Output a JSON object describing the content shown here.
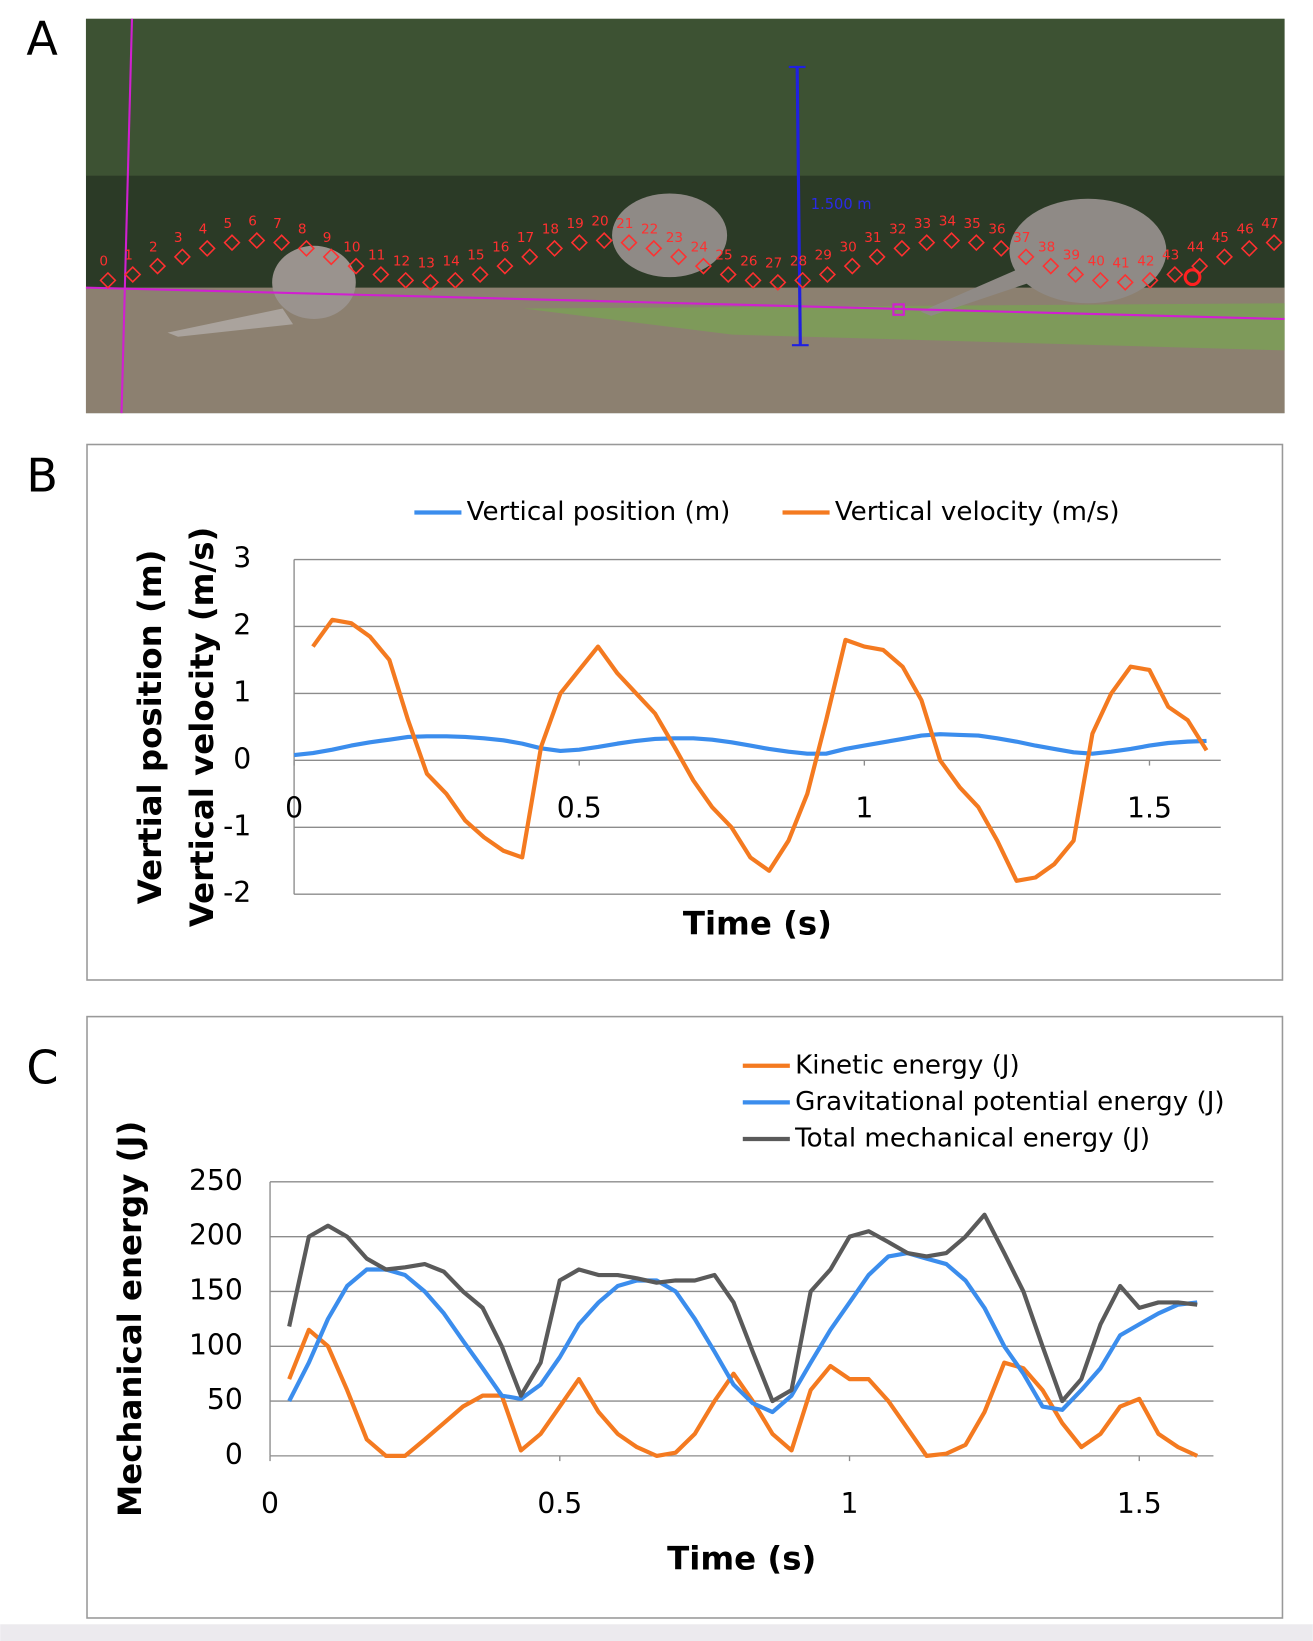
{
  "panel_labels": [
    "A",
    "B",
    "C"
  ],
  "photo": {
    "scale_label": "1.500 m",
    "point_labels": [
      "0",
      "1",
      "2",
      "3",
      "4",
      "5",
      "6",
      "7",
      "8",
      "9",
      "10",
      "11",
      "12",
      "13",
      "14",
      "15",
      "16",
      "17",
      "18",
      "19",
      "20",
      "21",
      "22",
      "23",
      "24",
      "25",
      "26",
      "27",
      "28",
      "29",
      "30",
      "31",
      "32",
      "33",
      "34",
      "35",
      "36",
      "37",
      "38",
      "39",
      "40",
      "41",
      "42",
      "43",
      "44",
      "45",
      "46",
      "47"
    ]
  },
  "chart_data": [
    {
      "type": "line",
      "legend": "top",
      "x_label": "Time (s)",
      "y_label": [
        "Vertial position (m)",
        "Vertical velocity (m/s)"
      ],
      "x": [
        0,
        0.033,
        0.067,
        0.1,
        0.133,
        0.167,
        0.2,
        0.233,
        0.267,
        0.3,
        0.333,
        0.367,
        0.4,
        0.433,
        0.467,
        0.5,
        0.533,
        0.567,
        0.6,
        0.633,
        0.667,
        0.7,
        0.733,
        0.767,
        0.8,
        0.833,
        0.867,
        0.9,
        0.933,
        0.967,
        1,
        1.033,
        1.067,
        1.1,
        1.133,
        1.167,
        1.2,
        1.233,
        1.267,
        1.3,
        1.333,
        1.367,
        1.4,
        1.433,
        1.467,
        1.5,
        1.533,
        1.567,
        1.6
      ],
      "series": [
        {
          "name": "Vertical position (m)",
          "color": "#3b8ded",
          "values": [
            0.08,
            0.11,
            0.16,
            0.22,
            0.27,
            0.31,
            0.35,
            0.36,
            0.36,
            0.35,
            0.33,
            0.3,
            0.25,
            0.18,
            0.14,
            0.16,
            0.2,
            0.25,
            0.29,
            0.32,
            0.33,
            0.33,
            0.31,
            0.27,
            0.22,
            0.17,
            0.13,
            0.1,
            0.1,
            0.17,
            0.22,
            0.27,
            0.32,
            0.37,
            0.39,
            0.38,
            0.37,
            0.33,
            0.28,
            0.22,
            0.17,
            0.12,
            0.1,
            0.13,
            0.17,
            0.22,
            0.26,
            0.28,
            0.29
          ]
        },
        {
          "name": "Vertical velocity (m/s)",
          "color": "#f47a20",
          "values": [
            null,
            1.7,
            2.1,
            2.05,
            1.85,
            1.5,
            0.6,
            -0.2,
            -0.5,
            -0.9,
            -1.15,
            -1.35,
            -1.45,
            0.2,
            1.0,
            1.35,
            1.7,
            1.3,
            1.0,
            0.7,
            0.2,
            -0.3,
            -0.7,
            -1.0,
            -1.45,
            -1.65,
            -1.2,
            -0.5,
            0.6,
            1.8,
            1.7,
            1.65,
            1.4,
            0.9,
            0.0,
            -0.4,
            -0.7,
            -1.2,
            -1.8,
            -1.75,
            -1.55,
            -1.2,
            0.4,
            1.0,
            1.4,
            1.35,
            0.8,
            0.6,
            0.15
          ]
        }
      ],
      "xlim": [
        0,
        1.625
      ],
      "xticks": [
        0,
        0.5,
        1,
        1.5
      ],
      "ylim": [
        -2,
        3
      ],
      "yticks": [
        -2,
        -1,
        0,
        1,
        2,
        3
      ],
      "grid": true
    },
    {
      "type": "line",
      "legend": "upper right",
      "x_label": "Time (s)",
      "y_label": [
        "Mechanical energy (J)"
      ],
      "x": [
        0.033,
        0.067,
        0.1,
        0.133,
        0.167,
        0.2,
        0.233,
        0.267,
        0.3,
        0.333,
        0.367,
        0.4,
        0.433,
        0.467,
        0.5,
        0.533,
        0.567,
        0.6,
        0.633,
        0.667,
        0.7,
        0.733,
        0.767,
        0.8,
        0.833,
        0.867,
        0.9,
        0.933,
        0.967,
        1,
        1.033,
        1.067,
        1.1,
        1.133,
        1.167,
        1.2,
        1.233,
        1.267,
        1.3,
        1.333,
        1.367,
        1.4,
        1.433,
        1.467,
        1.5,
        1.533,
        1.567,
        1.6
      ],
      "series": [
        {
          "name": "Kinetic energy (J)",
          "color": "#f47a20",
          "values": [
            70,
            115,
            100,
            60,
            15,
            0,
            0,
            15,
            30,
            45,
            55,
            55,
            5,
            20,
            45,
            70,
            40,
            20,
            8,
            0,
            3,
            20,
            50,
            75,
            50,
            20,
            5,
            60,
            82,
            70,
            70,
            50,
            25,
            0,
            2,
            10,
            40,
            85,
            80,
            60,
            30,
            8,
            20,
            45,
            52,
            20,
            8,
            0
          ]
        },
        {
          "name": "Gravitational potential energy (J)",
          "color": "#3b8ded",
          "values": [
            50,
            85,
            125,
            155,
            170,
            170,
            165,
            150,
            130,
            105,
            80,
            55,
            52,
            65,
            90,
            120,
            140,
            155,
            160,
            160,
            150,
            125,
            95,
            65,
            48,
            40,
            55,
            85,
            115,
            140,
            165,
            182,
            185,
            180,
            175,
            160,
            135,
            100,
            75,
            45,
            42,
            60,
            80,
            110,
            120,
            130,
            138,
            140
          ]
        },
        {
          "name": "Total mechanical energy (J)",
          "color": "#5a5a5a",
          "values": [
            118,
            200,
            210,
            200,
            180,
            170,
            172,
            175,
            168,
            150,
            135,
            100,
            55,
            85,
            160,
            170,
            165,
            165,
            162,
            158,
            160,
            160,
            165,
            140,
            95,
            50,
            60,
            150,
            170,
            200,
            205,
            195,
            185,
            182,
            185,
            200,
            220,
            185,
            150,
            100,
            50,
            70,
            120,
            155,
            135,
            140,
            140,
            138
          ]
        }
      ],
      "xlim": [
        0,
        1.628
      ],
      "xticks": [
        0,
        0.5,
        1,
        1.5
      ],
      "ylim": [
        0,
        250
      ],
      "yticks": [
        0,
        50,
        100,
        150,
        200,
        250
      ],
      "grid": true
    }
  ]
}
